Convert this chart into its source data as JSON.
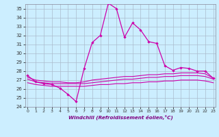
{
  "xlabel": "Windchill (Refroidissement éolien,°C)",
  "bg_color": "#cceeff",
  "grid_color": "#aabbcc",
  "line_color": "#cc00aa",
  "hours": [
    0,
    1,
    2,
    3,
    4,
    5,
    6,
    7,
    8,
    9,
    10,
    11,
    12,
    13,
    14,
    15,
    16,
    17,
    18,
    19,
    20,
    21,
    22,
    23
  ],
  "main_curve": [
    27.5,
    26.8,
    26.6,
    26.5,
    26.1,
    25.4,
    24.6,
    28.3,
    31.2,
    32.0,
    35.6,
    35.0,
    31.8,
    33.4,
    32.6,
    31.3,
    31.1,
    28.6,
    28.1,
    28.4,
    28.3,
    28.0,
    28.0,
    27.2
  ],
  "flat1": [
    27.3,
    27.0,
    26.9,
    26.8,
    26.8,
    26.7,
    26.7,
    26.8,
    27.0,
    27.1,
    27.2,
    27.3,
    27.4,
    27.4,
    27.5,
    27.6,
    27.6,
    27.7,
    27.7,
    27.8,
    27.8,
    27.8,
    27.7,
    27.2
  ],
  "flat2": [
    27.1,
    26.8,
    26.7,
    26.6,
    26.6,
    26.6,
    26.6,
    26.6,
    26.7,
    26.8,
    26.9,
    27.0,
    27.1,
    27.1,
    27.2,
    27.3,
    27.3,
    27.4,
    27.4,
    27.5,
    27.5,
    27.5,
    27.4,
    27.1
  ],
  "flat3": [
    26.7,
    26.5,
    26.4,
    26.3,
    26.3,
    26.3,
    26.3,
    26.3,
    26.4,
    26.5,
    26.5,
    26.6,
    26.6,
    26.7,
    26.7,
    26.8,
    26.8,
    26.9,
    26.9,
    27.0,
    27.0,
    27.0,
    26.9,
    26.7
  ],
  "ylim": [
    24,
    35.5
  ],
  "yticks": [
    24,
    25,
    26,
    27,
    28,
    29,
    30,
    31,
    32,
    33,
    34,
    35
  ],
  "xticks": [
    0,
    1,
    2,
    3,
    4,
    5,
    6,
    7,
    8,
    9,
    10,
    11,
    12,
    13,
    14,
    15,
    16,
    17,
    18,
    19,
    20,
    21,
    22,
    23
  ]
}
